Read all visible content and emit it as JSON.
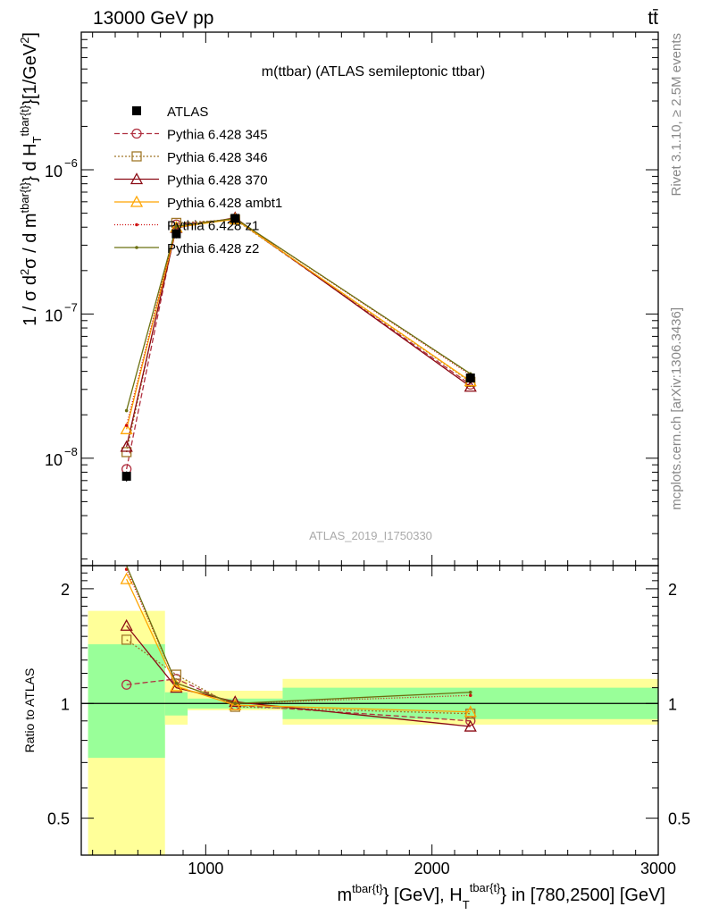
{
  "header": {
    "left": "13000 GeV pp",
    "right": "tt̄",
    "side_top": "Rivet 3.1.10, ≥ 2.5M events",
    "side_bottom": "mcplots.cern.ch [arXiv:1306.3436]",
    "watermark": "ATLAS_2019_I1750330"
  },
  "chart_data": {
    "type": "line",
    "title": "m(ttbar) (ATLAS semileptonic ttbar)",
    "xlabel_parts": {
      "m": "m",
      "sup1": "tbar{t}",
      "mid": "} [GeV], H",
      "sub": "T",
      "sup2": "tbar{t}",
      "tail": "} in [780,2500] [GeV]"
    },
    "ylabel_parts": {
      "a": "1 / σ d",
      "b": "2",
      "c": "σ / d m",
      "d": "tbar{t}",
      "e": "} d H",
      "f": "T",
      "g": "tbar{t}",
      "h": "}[1/GeV",
      "i": "2",
      "j": "]"
    },
    "ratio_ylabel": "Ratio to ATLAS",
    "xlim": [
      450,
      3000
    ],
    "ylim_main": [
      1.8e-09,
      9e-06
    ],
    "ylim_ratio": [
      0.4,
      2.3
    ],
    "y_scale": "log",
    "x_ticks": [
      {
        "v": 1000,
        "label": "1000"
      },
      {
        "v": 2000,
        "label": "2000"
      },
      {
        "v": 3000,
        "label": "3000"
      }
    ],
    "y_ticks_main": [
      {
        "v": 1e-06,
        "m": "10",
        "e": "−6"
      },
      {
        "v": 1e-07,
        "m": "10",
        "e": "−7"
      },
      {
        "v": 1e-08,
        "m": "10",
        "e": "−8"
      }
    ],
    "y_ticks_ratio": [
      {
        "v": 2,
        "label": "2"
      },
      {
        "v": 1,
        "label": "1"
      },
      {
        "v": 0.5,
        "label": "0.5"
      }
    ],
    "x": [
      650,
      870,
      1130,
      2170
    ],
    "bins": [
      [
        480,
        820
      ],
      [
        820,
        920
      ],
      [
        920,
        1340
      ],
      [
        1340,
        3000
      ]
    ],
    "data": {
      "name": "ATLAS",
      "values": [
        7.5e-09,
        3.6e-07,
        4.6e-07,
        3.6e-08
      ],
      "errors": [
        6e-10,
        2.5e-08,
        3e-08,
        3e-09
      ]
    },
    "band_inner": [
      [
        0.72,
        1.43
      ],
      [
        0.93,
        1.07
      ],
      [
        0.97,
        1.03
      ],
      [
        0.91,
        1.1
      ]
    ],
    "band_outer": [
      [
        0.35,
        1.75
      ],
      [
        0.88,
        1.15
      ],
      [
        0.96,
        1.08
      ],
      [
        0.88,
        1.16
      ]
    ],
    "legend_position": "top-left",
    "series": [
      {
        "name": "Pythia 6.428 345",
        "color": "#b03040",
        "dash": "6,3",
        "marker": "circle",
        "ratio": [
          1.12,
          1.16,
          0.99,
          0.9
        ]
      },
      {
        "name": "Pythia 6.428 346",
        "color": "#a0782a",
        "dash": "2,2",
        "marker": "square",
        "ratio": [
          1.47,
          1.19,
          0.98,
          0.94
        ]
      },
      {
        "name": "Pythia 6.428 370",
        "color": "#8b0a14",
        "dash": "",
        "marker": "triangle",
        "ratio": [
          1.6,
          1.1,
          1.01,
          0.87
        ]
      },
      {
        "name": "Pythia 6.428 ambt1",
        "color": "#ffa500",
        "dash": "",
        "marker": "triangle",
        "ratio": [
          2.12,
          1.11,
          0.99,
          0.95
        ]
      },
      {
        "name": "Pythia 6.428 z1",
        "color": "#d01010",
        "dash": "1,2",
        "marker": "dot",
        "ratio": [
          2.25,
          1.13,
          1.0,
          1.05
        ]
      },
      {
        "name": "Pythia 6.428 z2",
        "color": "#6b7010",
        "dash": "",
        "marker": "dot",
        "ratio": [
          2.85,
          1.13,
          1.0,
          1.07
        ]
      }
    ]
  }
}
